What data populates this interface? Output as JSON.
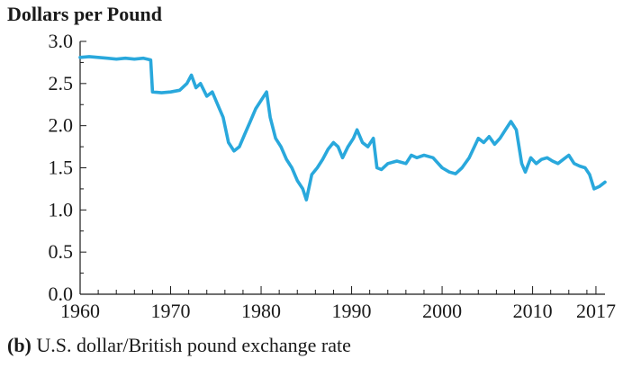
{
  "chart_data": {
    "type": "line",
    "title": "Dollars per Pound",
    "caption_tag": "(b)",
    "caption_text": "U.S. dollar/British pound exchange rate",
    "xlabel": "",
    "ylabel": "Dollars per Pound",
    "xlim": [
      1960,
      2018
    ],
    "ylim": [
      0.0,
      3.0
    ],
    "x_ticks": [
      1960,
      1970,
      1980,
      1990,
      2000,
      2010,
      2017
    ],
    "y_ticks": [
      "0.0",
      "0.5",
      "1.0",
      "1.5",
      "2.0",
      "2.5",
      "3.0"
    ],
    "grid": false,
    "colors": {
      "line": "#29a8dc",
      "axis": "#1a1a1a"
    },
    "series": [
      {
        "x": [
          1960,
          1961,
          1962,
          1963,
          1964,
          1965,
          1966,
          1967,
          1967.8,
          1968,
          1969,
          1970,
          1971,
          1971.8,
          1972.3,
          1972.8,
          1973.3,
          1974,
          1974.6,
          1975.2,
          1975.8,
          1976.4,
          1977,
          1977.6,
          1978.2,
          1978.8,
          1979.4,
          1980,
          1980.6,
          1981,
          1981.6,
          1982.2,
          1982.8,
          1983.4,
          1984,
          1984.6,
          1985,
          1985.6,
          1986.2,
          1986.8,
          1987.4,
          1988,
          1988.5,
          1989,
          1989.6,
          1990.2,
          1990.6,
          1991.2,
          1991.8,
          1992.4,
          1992.8,
          1993.3,
          1994,
          1995,
          1996,
          1996.6,
          1997.2,
          1998,
          1999,
          2000,
          2000.8,
          2001.5,
          2002.2,
          2003,
          2004,
          2004.6,
          2005.2,
          2005.8,
          2006.4,
          2007,
          2007.6,
          2008.2,
          2008.8,
          2009.2,
          2009.8,
          2010.4,
          2011,
          2011.6,
          2012.2,
          2012.8,
          2013.4,
          2014,
          2014.6,
          2015.2,
          2015.8,
          2016.3,
          2016.8,
          2017.4,
          2018
        ],
        "y": [
          2.81,
          2.82,
          2.81,
          2.8,
          2.79,
          2.8,
          2.79,
          2.8,
          2.78,
          2.4,
          2.39,
          2.4,
          2.42,
          2.5,
          2.6,
          2.45,
          2.5,
          2.35,
          2.4,
          2.25,
          2.1,
          1.8,
          1.7,
          1.75,
          1.9,
          2.05,
          2.2,
          2.3,
          2.4,
          2.1,
          1.85,
          1.75,
          1.6,
          1.5,
          1.35,
          1.25,
          1.12,
          1.42,
          1.5,
          1.6,
          1.72,
          1.8,
          1.75,
          1.62,
          1.75,
          1.85,
          1.95,
          1.8,
          1.75,
          1.85,
          1.5,
          1.48,
          1.55,
          1.58,
          1.55,
          1.65,
          1.62,
          1.65,
          1.62,
          1.5,
          1.45,
          1.43,
          1.5,
          1.62,
          1.85,
          1.8,
          1.87,
          1.78,
          1.85,
          1.95,
          2.05,
          1.95,
          1.55,
          1.45,
          1.62,
          1.55,
          1.6,
          1.62,
          1.58,
          1.55,
          1.6,
          1.65,
          1.55,
          1.52,
          1.5,
          1.42,
          1.25,
          1.28,
          1.33
        ]
      }
    ]
  }
}
